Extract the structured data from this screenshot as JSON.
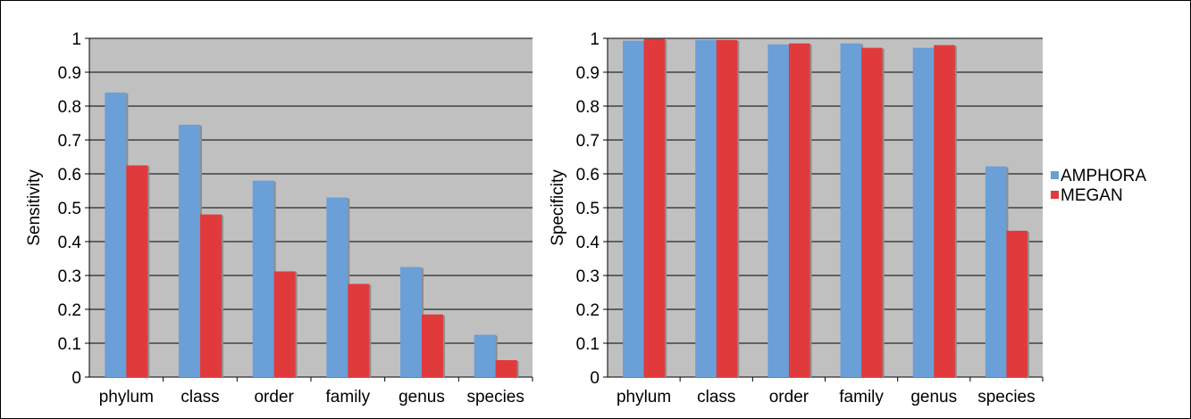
{
  "chart_data": [
    {
      "type": "bar",
      "categories": [
        "phylum",
        "class",
        "order",
        "family",
        "genus",
        "species"
      ],
      "ylabel": "Sensitivity",
      "ylim": [
        0,
        1
      ],
      "yticks": [
        "0",
        "0.1",
        "0.2",
        "0.3",
        "0.4",
        "0.5",
        "0.6",
        "0.7",
        "0.8",
        "0.9",
        "1"
      ],
      "grid": true,
      "series": [
        {
          "name": "AMPHORA",
          "color": "#6a9fd8",
          "values": [
            0.84,
            0.745,
            0.58,
            0.53,
            0.325,
            0.125
          ]
        },
        {
          "name": "MEGAN",
          "color": "#e03a3c",
          "values": [
            0.625,
            0.48,
            0.312,
            0.275,
            0.185,
            0.05
          ]
        }
      ]
    },
    {
      "type": "bar",
      "categories": [
        "phylum",
        "class",
        "order",
        "family",
        "genus",
        "species"
      ],
      "ylabel": "Specificity",
      "ylim": [
        0,
        1
      ],
      "yticks": [
        "0",
        "0.1",
        "0.2",
        "0.3",
        "0.4",
        "0.5",
        "0.6",
        "0.7",
        "0.8",
        "0.9",
        "1"
      ],
      "grid": true,
      "series": [
        {
          "name": "AMPHORA",
          "color": "#6a9fd8",
          "values": [
            0.993,
            0.995,
            0.982,
            0.985,
            0.972,
            0.622
          ]
        },
        {
          "name": "MEGAN",
          "color": "#e03a3c",
          "values": [
            0.998,
            0.995,
            0.985,
            0.972,
            0.98,
            0.432
          ]
        }
      ]
    }
  ],
  "legend": {
    "placement": "right",
    "items": [
      {
        "label": "AMPHORA",
        "color": "#6a9fd8"
      },
      {
        "label": "MEGAN",
        "color": "#e03a3c"
      }
    ]
  },
  "style": {
    "plot_background": "#c0c0c0",
    "grid_color": "#000000"
  }
}
